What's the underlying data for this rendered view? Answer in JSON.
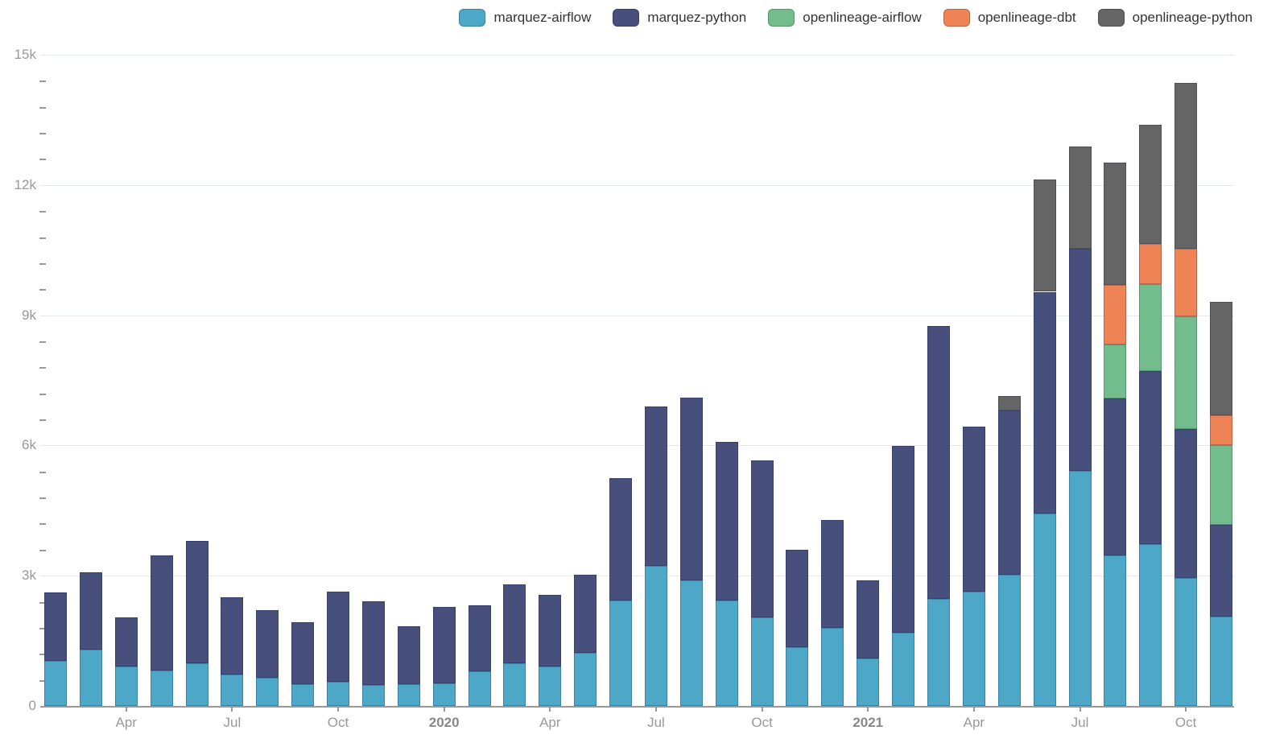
{
  "chart_data": {
    "type": "bar",
    "stacked": true,
    "title": "",
    "xlabel": "",
    "ylabel": "",
    "ylim": [
      0,
      15000
    ],
    "grid": true,
    "legend_position": "top-right",
    "y_tick_labels": [
      "0",
      "3k",
      "6k",
      "9k",
      "12k",
      "15k"
    ],
    "y_tick_values": [
      0,
      3000,
      6000,
      9000,
      12000,
      15000
    ],
    "y_minor_tick_step": 600,
    "categories": [
      "2019-02",
      "2019-03",
      "2019-04",
      "2019-05",
      "2019-06",
      "2019-07",
      "2019-08",
      "2019-09",
      "2019-10",
      "2019-11",
      "2019-12",
      "2020-01",
      "2020-02",
      "2020-03",
      "2020-04",
      "2020-05",
      "2020-06",
      "2020-07",
      "2020-08",
      "2020-09",
      "2020-10",
      "2020-11",
      "2020-12",
      "2021-01",
      "2021-02",
      "2021-03",
      "2021-04",
      "2021-05",
      "2021-06",
      "2021-07",
      "2021-08",
      "2021-09",
      "2021-10",
      "2021-11"
    ],
    "x_tick_labels": [
      {
        "index": 2,
        "label": "Apr",
        "bold": false
      },
      {
        "index": 5,
        "label": "Jul",
        "bold": false
      },
      {
        "index": 8,
        "label": "Oct",
        "bold": false
      },
      {
        "index": 11,
        "label": "2020",
        "bold": true
      },
      {
        "index": 14,
        "label": "Apr",
        "bold": false
      },
      {
        "index": 17,
        "label": "Jul",
        "bold": false
      },
      {
        "index": 20,
        "label": "Oct",
        "bold": false
      },
      {
        "index": 23,
        "label": "2021",
        "bold": true
      },
      {
        "index": 26,
        "label": "Apr",
        "bold": false
      },
      {
        "index": 29,
        "label": "Jul",
        "bold": false
      },
      {
        "index": 32,
        "label": "Oct",
        "bold": false
      }
    ],
    "series": [
      {
        "name": "marquez-airflow",
        "color": "#4da7c7",
        "values": [
          1030,
          1290,
          910,
          820,
          990,
          730,
          640,
          500,
          560,
          490,
          510,
          520,
          800,
          990,
          910,
          1230,
          2420,
          3230,
          2890,
          2420,
          2040,
          1360,
          1790,
          1090,
          1680,
          2470,
          2630,
          3020,
          4440,
          5410,
          3470,
          3720,
          2940,
          2050
        ]
      },
      {
        "name": "marquez-python",
        "color": "#474f7d",
        "values": [
          1580,
          1790,
          1130,
          2650,
          2810,
          1780,
          1570,
          1430,
          2070,
          1920,
          1330,
          1770,
          1510,
          1810,
          1640,
          1790,
          2830,
          3670,
          4210,
          3670,
          3610,
          2240,
          2490,
          1800,
          4310,
          6290,
          3800,
          3780,
          5100,
          5130,
          3620,
          4000,
          3440,
          2130
        ]
      },
      {
        "name": "openlineage-airflow",
        "color": "#72bd8b",
        "values": [
          0,
          0,
          0,
          0,
          0,
          0,
          0,
          0,
          0,
          0,
          0,
          0,
          0,
          0,
          0,
          0,
          0,
          0,
          0,
          0,
          0,
          0,
          0,
          0,
          0,
          0,
          0,
          0,
          0,
          0,
          1240,
          1990,
          2600,
          1830
        ]
      },
      {
        "name": "openlineage-dbt",
        "color": "#ee8355",
        "values": [
          0,
          0,
          0,
          0,
          0,
          0,
          0,
          0,
          0,
          0,
          0,
          0,
          0,
          0,
          0,
          0,
          0,
          0,
          0,
          0,
          0,
          0,
          0,
          0,
          0,
          0,
          0,
          0,
          0,
          0,
          1360,
          930,
          1550,
          680
        ]
      },
      {
        "name": "openlineage-python",
        "color": "#656565",
        "values": [
          0,
          0,
          0,
          0,
          0,
          0,
          0,
          0,
          0,
          0,
          0,
          0,
          0,
          0,
          0,
          0,
          0,
          0,
          0,
          0,
          0,
          0,
          0,
          0,
          0,
          0,
          0,
          330,
          2590,
          2350,
          2830,
          2750,
          3820,
          2620
        ]
      }
    ]
  }
}
